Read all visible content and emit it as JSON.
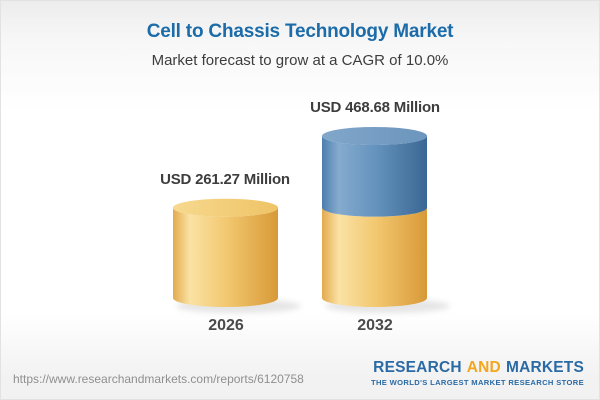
{
  "header": {
    "title": "Cell to Chassis Technology Market",
    "subtitle": "Market forecast to grow at a CAGR of 10.0%"
  },
  "chart_data": {
    "type": "bar",
    "variant": "3d-cylinder",
    "title": "Cell to Chassis Technology Market",
    "subtitle": "Market forecast to grow at a CAGR of 10.0%",
    "unit": "USD Million",
    "categories": [
      "2026",
      "2032"
    ],
    "values": [
      261.27,
      468.68
    ],
    "value_labels": [
      "USD 261.27 Million",
      "USD 468.68 Million"
    ],
    "axes": "none",
    "grid": false,
    "legend": "none",
    "bars": [
      {
        "category": "2026",
        "value": 261.27,
        "label": "USD 261.27 Million",
        "segments": [
          {
            "value": 261.27,
            "color": "gold"
          }
        ]
      },
      {
        "category": "2032",
        "value": 468.68,
        "label": "USD 468.68 Million",
        "segments": [
          {
            "value": 261.27,
            "color": "gold"
          },
          {
            "value": 207.41,
            "color": "blue"
          }
        ]
      }
    ]
  },
  "footer": {
    "url": "https://www.researchandmarkets.com/reports/6120758",
    "logo": {
      "research": "RESEARCH",
      "and": "AND",
      "markets": "MARKETS",
      "tagline": "THE WORLD'S LARGEST MARKET RESEARCH STORE"
    }
  },
  "colors": {
    "title_blue": "#1B6CA9",
    "text_dark": "#3D3D3D",
    "year_gray": "#4A4A4A",
    "url_gray": "#8F8F8F",
    "logo_blue": "#2A6AA5",
    "logo_orange": "#F2A71F",
    "gold_side": [
      "#E3AA4E",
      "#FAE2A4",
      "#F2C76F",
      "#D89937"
    ],
    "gold_top": [
      "#F6D98F",
      "#EFC365"
    ],
    "blue_side": [
      "#4C7EAE",
      "#85ABCE",
      "#6392BD",
      "#3A6793"
    ],
    "blue_top": [
      "#81A7CA",
      "#6C95BD"
    ]
  }
}
